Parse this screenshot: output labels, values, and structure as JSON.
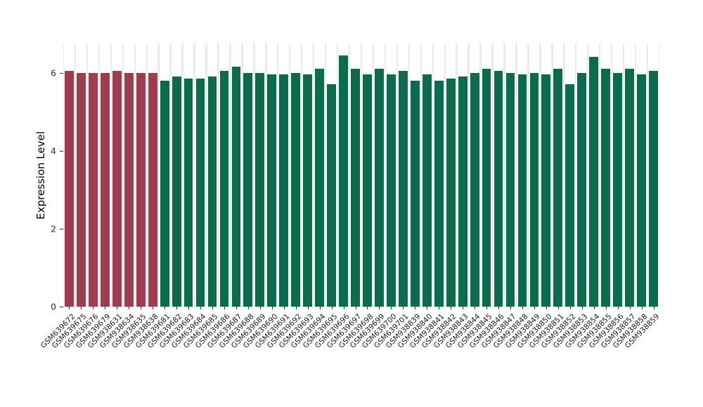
{
  "chart_data": {
    "type": "bar",
    "title": "",
    "xlabel": "",
    "ylabel": "Expression Level",
    "ylim": [
      0,
      6.75
    ],
    "yticks": [
      0,
      2,
      4,
      6
    ],
    "legend": "none",
    "panel_background": "#EBEBEB",
    "column_stripe_color": "#FFFFFF",
    "bar_color_groups": [
      {
        "color": "#9E3D50",
        "count": 8
      },
      {
        "color": "#0B6B4C",
        "count": 42
      }
    ],
    "categories": [
      "GSM639672",
      "GSM639675",
      "GSM639676",
      "GSM639679",
      "GSM938631",
      "GSM938634",
      "GSM938635",
      "GSM938638",
      "GSM639681",
      "GSM639682",
      "GSM639683",
      "GSM639684",
      "GSM639685",
      "GSM639686",
      "GSM639687",
      "GSM639688",
      "GSM639689",
      "GSM639690",
      "GSM639691",
      "GSM639692",
      "GSM639693",
      "GSM639694",
      "GSM639695",
      "GSM639696",
      "GSM639697",
      "GSM639698",
      "GSM639699",
      "GSM639700",
      "GSM639701",
      "GSM938839",
      "GSM938840",
      "GSM938841",
      "GSM938842",
      "GSM938843",
      "GSM938844",
      "GSM938845",
      "GSM938846",
      "GSM938847",
      "GSM938848",
      "GSM938849",
      "GSM938850",
      "GSM938851",
      "GSM938852",
      "GSM938853",
      "GSM938854",
      "GSM938855",
      "GSM938856",
      "GSM938857",
      "GSM938858",
      "GSM938859"
    ],
    "values": [
      6.05,
      6.0,
      6.0,
      6.0,
      6.05,
      6.0,
      6.0,
      6.0,
      5.8,
      5.9,
      5.85,
      5.85,
      5.9,
      6.05,
      6.15,
      6.0,
      6.0,
      5.95,
      5.95,
      6.0,
      5.95,
      6.1,
      5.7,
      6.45,
      6.1,
      5.95,
      6.1,
      5.95,
      6.05,
      5.8,
      5.95,
      5.8,
      5.85,
      5.9,
      6.0,
      6.1,
      6.05,
      6.0,
      5.95,
      6.0,
      5.95,
      6.1,
      5.7,
      6.0,
      6.4,
      6.1,
      6.0,
      6.1,
      5.95,
      6.05
    ]
  }
}
